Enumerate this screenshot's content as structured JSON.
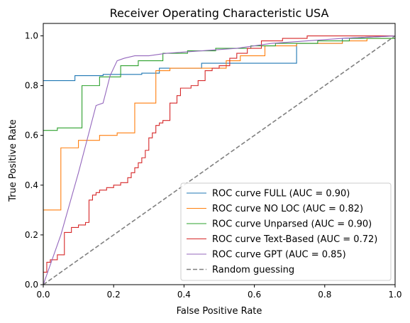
{
  "chart_data": {
    "type": "line",
    "title": "Receiver Operating Characteristic USA",
    "xlabel": "False Positive Rate",
    "ylabel": "True Positive Rate",
    "xlim": [
      0.0,
      1.0
    ],
    "ylim": [
      0.0,
      1.05
    ],
    "x_ticks": [
      "0.0",
      "0.2",
      "0.4",
      "0.6",
      "0.8",
      "1.0"
    ],
    "y_ticks": [
      "0.0",
      "0.2",
      "0.4",
      "0.6",
      "0.8",
      "1.0"
    ],
    "grid": false,
    "legend_position": "lower-right",
    "series": [
      {
        "name": "ROC curve FULL (AUC = 0.90)",
        "color": "#1f77b4",
        "style": "solid",
        "x": [
          0.0,
          0.0,
          0.09,
          0.09,
          0.17,
          0.17,
          0.28,
          0.28,
          0.33,
          0.33,
          0.45,
          0.45,
          0.72,
          0.72,
          0.85,
          0.85,
          1.0
        ],
        "y": [
          0.0,
          0.82,
          0.82,
          0.84,
          0.84,
          0.845,
          0.845,
          0.85,
          0.85,
          0.87,
          0.87,
          0.89,
          0.89,
          0.97,
          0.97,
          0.99,
          1.0
        ]
      },
      {
        "name": "ROC curve NO LOC (AUC = 0.82)",
        "color": "#ff7f0e",
        "style": "solid",
        "x": [
          0.0,
          0.0,
          0.05,
          0.05,
          0.1,
          0.1,
          0.16,
          0.16,
          0.21,
          0.21,
          0.26,
          0.26,
          0.32,
          0.32,
          0.36,
          0.36,
          0.42,
          0.42,
          0.52,
          0.52,
          0.56,
          0.56,
          0.63,
          0.63,
          0.72,
          0.72,
          0.85,
          0.85,
          0.92,
          0.92,
          1.0
        ],
        "y": [
          0.0,
          0.3,
          0.3,
          0.55,
          0.55,
          0.58,
          0.58,
          0.6,
          0.6,
          0.61,
          0.61,
          0.73,
          0.73,
          0.86,
          0.86,
          0.87,
          0.87,
          0.87,
          0.87,
          0.9,
          0.9,
          0.92,
          0.92,
          0.96,
          0.96,
          0.97,
          0.97,
          0.98,
          0.98,
          0.99,
          0.99
        ]
      },
      {
        "name": "ROC curve Unparsed (AUC = 0.90)",
        "color": "#2ca02c",
        "style": "solid",
        "x": [
          0.0,
          0.0,
          0.04,
          0.04,
          0.11,
          0.11,
          0.16,
          0.16,
          0.22,
          0.22,
          0.27,
          0.27,
          0.34,
          0.34,
          0.41,
          0.41,
          0.49,
          0.49,
          0.59,
          0.59,
          0.66,
          0.66,
          0.78,
          0.78,
          0.87,
          0.87,
          1.0
        ],
        "y": [
          0.0,
          0.62,
          0.62,
          0.63,
          0.63,
          0.8,
          0.8,
          0.835,
          0.835,
          0.88,
          0.88,
          0.9,
          0.9,
          0.93,
          0.93,
          0.94,
          0.94,
          0.95,
          0.95,
          0.96,
          0.96,
          0.97,
          0.97,
          0.98,
          0.98,
          0.99,
          0.99
        ]
      },
      {
        "name": "ROC curve Text-Based (AUC = 0.72)",
        "color": "#d62728",
        "style": "solid",
        "x": [
          0.0,
          0.0,
          0.01,
          0.01,
          0.02,
          0.02,
          0.04,
          0.04,
          0.06,
          0.06,
          0.08,
          0.08,
          0.1,
          0.1,
          0.12,
          0.12,
          0.13,
          0.13,
          0.14,
          0.14,
          0.15,
          0.15,
          0.16,
          0.16,
          0.18,
          0.18,
          0.2,
          0.2,
          0.22,
          0.22,
          0.24,
          0.24,
          0.25,
          0.25,
          0.26,
          0.26,
          0.27,
          0.27,
          0.28,
          0.28,
          0.29,
          0.29,
          0.3,
          0.3,
          0.31,
          0.31,
          0.32,
          0.32,
          0.33,
          0.33,
          0.34,
          0.34,
          0.36,
          0.36,
          0.38,
          0.38,
          0.39,
          0.39,
          0.42,
          0.42,
          0.44,
          0.44,
          0.46,
          0.46,
          0.48,
          0.48,
          0.5,
          0.5,
          0.53,
          0.53,
          0.55,
          0.55,
          0.58,
          0.58,
          0.62,
          0.62,
          0.68,
          0.68,
          0.75,
          0.75,
          1.0
        ],
        "y": [
          0.0,
          0.05,
          0.05,
          0.09,
          0.09,
          0.1,
          0.1,
          0.12,
          0.12,
          0.21,
          0.21,
          0.23,
          0.23,
          0.24,
          0.24,
          0.25,
          0.25,
          0.34,
          0.34,
          0.36,
          0.36,
          0.37,
          0.37,
          0.38,
          0.38,
          0.39,
          0.39,
          0.4,
          0.4,
          0.41,
          0.41,
          0.43,
          0.43,
          0.45,
          0.45,
          0.47,
          0.47,
          0.49,
          0.49,
          0.51,
          0.51,
          0.54,
          0.54,
          0.59,
          0.59,
          0.61,
          0.61,
          0.64,
          0.64,
          0.65,
          0.65,
          0.66,
          0.66,
          0.73,
          0.73,
          0.76,
          0.76,
          0.79,
          0.79,
          0.8,
          0.8,
          0.82,
          0.82,
          0.86,
          0.86,
          0.87,
          0.87,
          0.88,
          0.88,
          0.91,
          0.91,
          0.93,
          0.93,
          0.95,
          0.95,
          0.98,
          0.98,
          0.99,
          0.99,
          1.0,
          1.0
        ]
      },
      {
        "name": "ROC curve GPT (AUC = 0.85)",
        "color": "#9467bd",
        "style": "solid",
        "x": [
          0.0,
          0.05,
          0.1,
          0.15,
          0.17,
          0.19,
          0.21,
          0.23,
          0.26,
          0.3,
          0.35,
          0.45,
          0.55,
          0.65,
          0.75,
          0.85,
          1.0
        ],
        "y": [
          0.0,
          0.2,
          0.45,
          0.72,
          0.73,
          0.84,
          0.9,
          0.91,
          0.92,
          0.92,
          0.93,
          0.94,
          0.95,
          0.97,
          0.98,
          0.99,
          1.0
        ]
      },
      {
        "name": "Random guessing",
        "color": "#808080",
        "style": "dashed",
        "x": [
          0.0,
          1.0
        ],
        "y": [
          0.0,
          1.0
        ]
      }
    ]
  }
}
